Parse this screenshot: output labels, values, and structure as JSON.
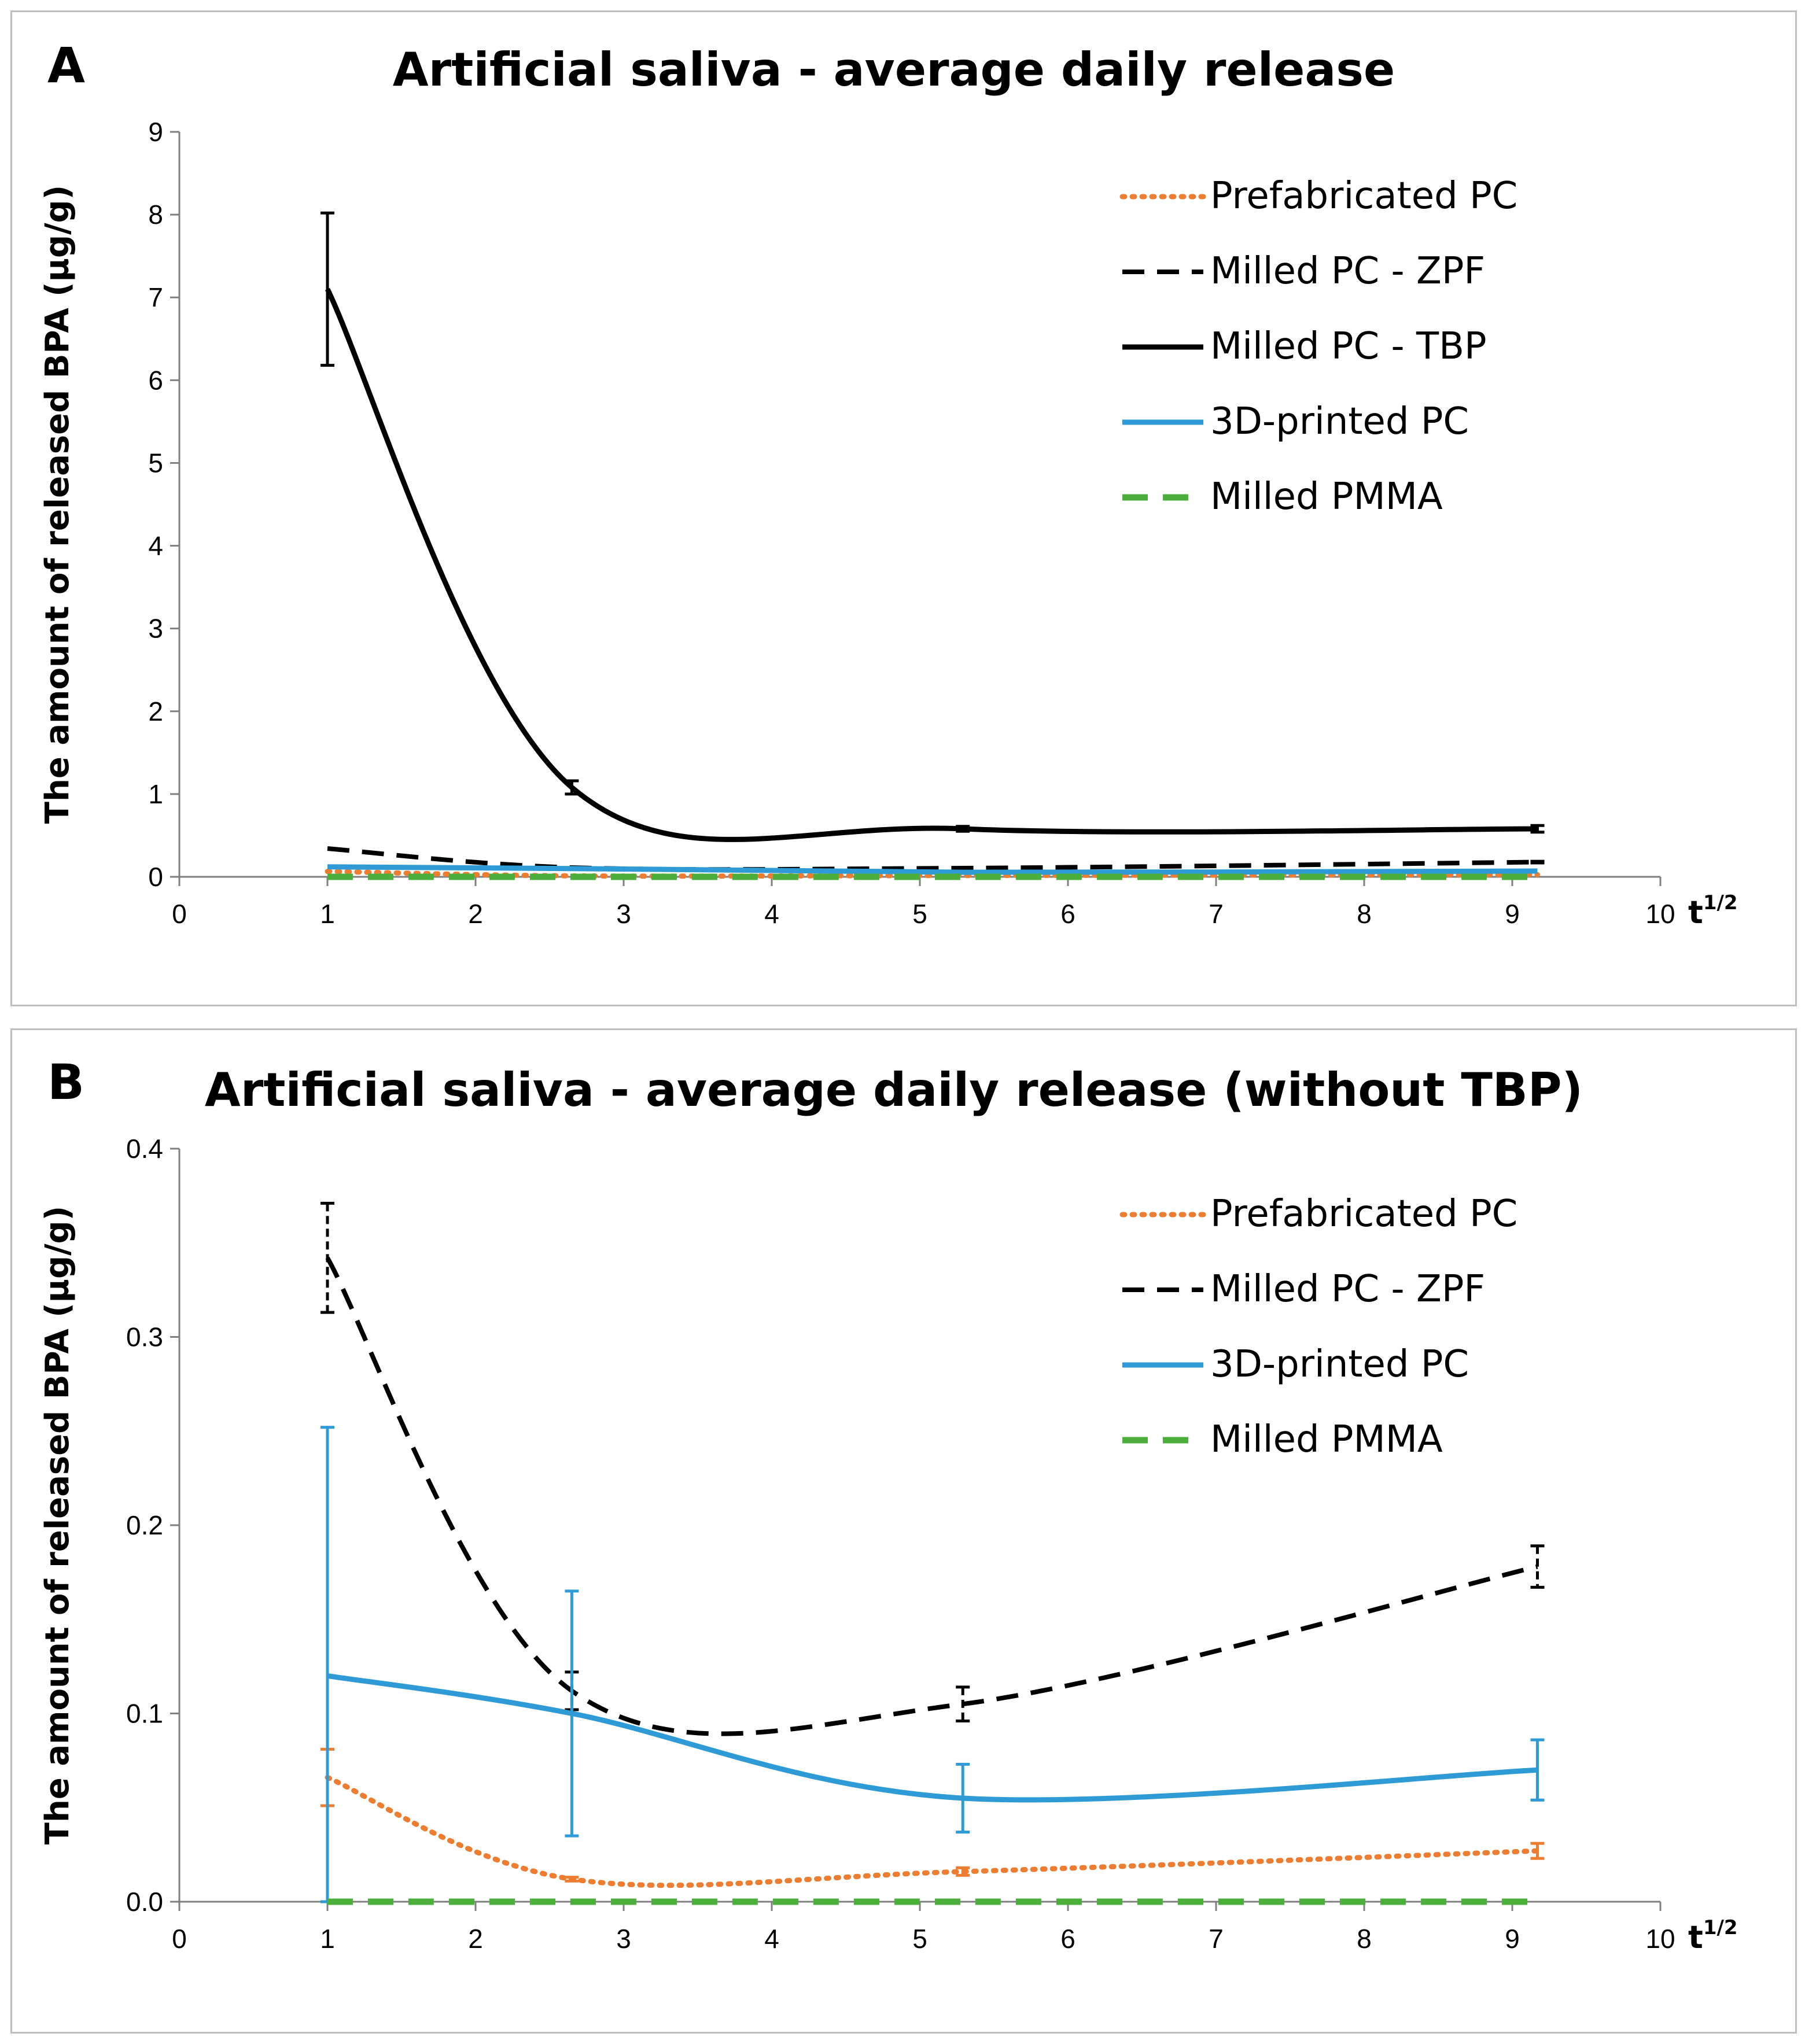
{
  "colors": {
    "orange": "#ED7D31",
    "black": "#000000",
    "blue": "#2E9BD6",
    "green": "#4CAF3C",
    "axis": "#7f7f7f"
  },
  "chart_data": [
    {
      "panel_letter": "A",
      "type": "line",
      "title": "Artificial saliva - average daily release",
      "ylabel": "The amount of released BPA (µg/g)",
      "xlabel": "t",
      "xlabel_sup": "1/2",
      "xlim": [
        0,
        10
      ],
      "ylim": [
        0,
        9
      ],
      "x_ticks": [
        0,
        1,
        2,
        3,
        4,
        5,
        6,
        7,
        8,
        9,
        10
      ],
      "x_tick_labels": [
        "0",
        "1",
        "2",
        "3",
        "4",
        "5",
        "6",
        "7",
        "8",
        "9",
        "10"
      ],
      "y_ticks": [
        0,
        1,
        2,
        3,
        4,
        5,
        6,
        7,
        8,
        9
      ],
      "y_tick_labels": [
        "0",
        "1",
        "2",
        "3",
        "4",
        "5",
        "6",
        "7",
        "8",
        "9"
      ],
      "x": [
        1,
        2.65,
        5.29,
        9.17
      ],
      "series": [
        {
          "name": "Prefabricated PC",
          "style": "dotted",
          "color": "#ED7D31",
          "values": [
            0.066,
            0.012,
            0.016,
            0.027
          ],
          "errors": [
            0,
            0,
            0,
            0
          ]
        },
        {
          "name": "Milled PC - ZPF",
          "style": "dashed",
          "color": "#000000",
          "values": [
            0.342,
            0.112,
            0.105,
            0.178
          ],
          "errors": [
            0,
            0,
            0,
            0.01
          ]
        },
        {
          "name": "Milled PC - TBP",
          "style": "solid",
          "color": "#000000",
          "values": [
            7.1,
            1.08,
            0.58,
            0.58
          ],
          "errors": [
            0.92,
            0.08,
            0.03,
            0.04
          ]
        },
        {
          "name": "3D-printed PC",
          "style": "solid",
          "color": "#2E9BD6",
          "values": [
            0.12,
            0.1,
            0.055,
            0.07
          ],
          "errors": [
            0,
            0,
            0,
            0
          ]
        },
        {
          "name": "Milled PMMA",
          "style": "longdash",
          "color": "#4CAF3C",
          "values": [
            0,
            0,
            0,
            0
          ],
          "errors": [
            0,
            0,
            0,
            0
          ]
        }
      ]
    },
    {
      "panel_letter": "B",
      "type": "line",
      "title": "Artificial saliva - average daily release (without TBP)",
      "ylabel": "The amount of released BPA (µg/g)",
      "xlabel": "t",
      "xlabel_sup": "1/2",
      "xlim": [
        0,
        10
      ],
      "ylim": [
        0,
        0.4
      ],
      "x_ticks": [
        0,
        1,
        2,
        3,
        4,
        5,
        6,
        7,
        8,
        9,
        10
      ],
      "x_tick_labels": [
        "0",
        "1",
        "2",
        "3",
        "4",
        "5",
        "6",
        "7",
        "8",
        "9",
        "10"
      ],
      "y_ticks": [
        0,
        0.1,
        0.2,
        0.3,
        0.4
      ],
      "y_tick_labels": [
        "0.0",
        "0.1",
        "0.2",
        "0.3",
        "0.4"
      ],
      "x": [
        1,
        2.65,
        5.29,
        9.17
      ],
      "series": [
        {
          "name": "Prefabricated PC",
          "style": "dotted",
          "color": "#ED7D31",
          "values": [
            0.066,
            0.012,
            0.016,
            0.027
          ],
          "errors": [
            0.015,
            0.001,
            0.002,
            0.004
          ]
        },
        {
          "name": "Milled PC - ZPF",
          "style": "dashed",
          "color": "#000000",
          "values": [
            0.342,
            0.112,
            0.105,
            0.178
          ],
          "errors": [
            0.029,
            0.01,
            0.009,
            0.011
          ]
        },
        {
          "name": "3D-printed PC",
          "style": "solid",
          "color": "#2E9BD6",
          "values": [
            0.12,
            0.1,
            0.055,
            0.07
          ],
          "errors": [
            0.132,
            0.065,
            0.018,
            0.016
          ]
        },
        {
          "name": "Milled PMMA",
          "style": "longdash",
          "color": "#4CAF3C",
          "values": [
            0,
            0,
            0,
            0
          ],
          "errors": [
            0,
            0,
            0,
            0
          ]
        }
      ]
    }
  ]
}
